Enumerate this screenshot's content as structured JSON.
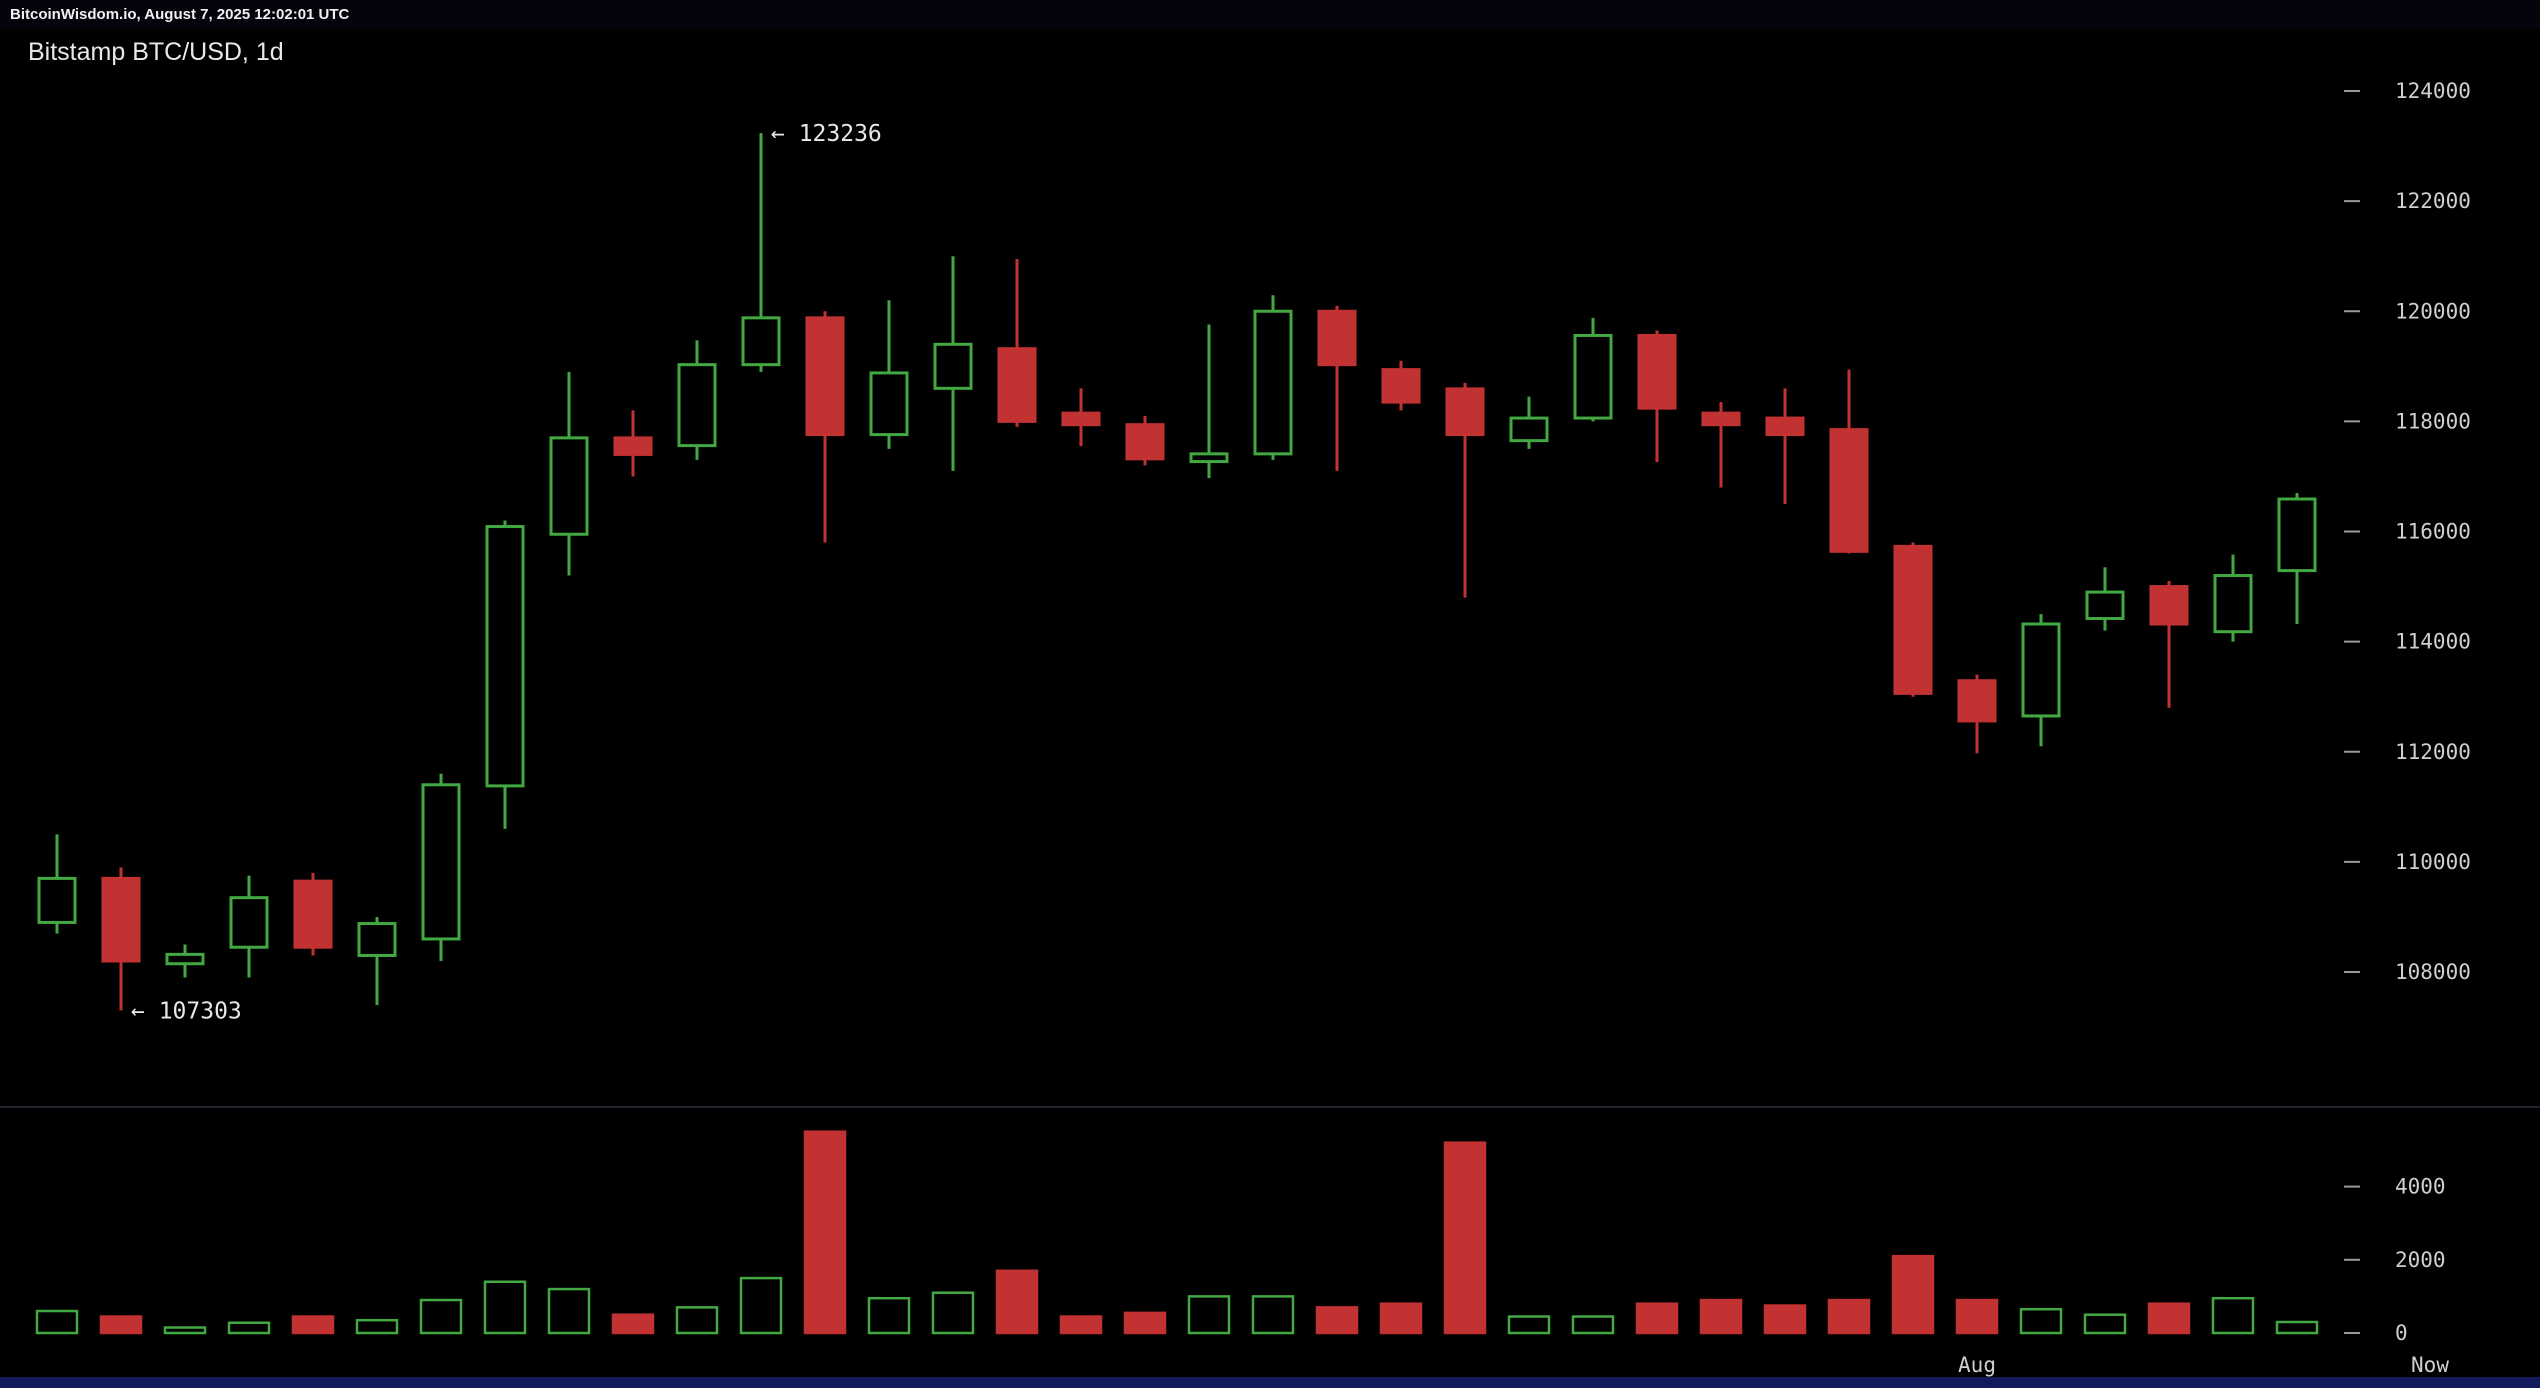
{
  "top_bar": {
    "text": "BitcoinWisdom.io, August 7, 2025 12:02:01 UTC"
  },
  "chart_data": {
    "type": "candlestick",
    "title": "Bitstamp BTC/USD, 1d",
    "exchange": "Bitstamp",
    "pair": "BTC/USD",
    "interval": "1d",
    "price_axis_ticks": [
      124000,
      122000,
      120000,
      118000,
      116000,
      114000,
      112000,
      110000,
      108000
    ],
    "price_axis_range": [
      107000,
      124800
    ],
    "volume_axis_ticks": [
      4000,
      2000,
      0
    ],
    "x_axis_labels": [
      {
        "label": "Aug",
        "candle_index": 30
      },
      {
        "label": "Now",
        "align": "right"
      }
    ],
    "annotations": [
      {
        "text": "← 123236",
        "value": 123236,
        "anchor": "high",
        "candle_index": 11
      },
      {
        "text": "← 107303",
        "value": 107303,
        "anchor": "low",
        "candle_index": 1
      }
    ],
    "colors": {
      "up": "#42a842",
      "down": "#c33232",
      "background": "#000000",
      "text": "#cfcfcf",
      "tick": "#9a9a9a",
      "annotation": "#e8e8e8",
      "separator": "#23232f"
    },
    "candles_format": [
      "open",
      "high",
      "low",
      "close",
      "volume"
    ],
    "candles": [
      [
        108900,
        110500,
        108700,
        109700,
        600
      ],
      [
        109700,
        109900,
        107303,
        108200,
        450
      ],
      [
        108150,
        108500,
        107900,
        108320,
        150
      ],
      [
        108450,
        109750,
        107900,
        109350,
        280
      ],
      [
        109650,
        109800,
        108300,
        108450,
        450
      ],
      [
        108300,
        109000,
        107400,
        108880,
        350
      ],
      [
        108600,
        111600,
        108200,
        111400,
        900
      ],
      [
        111380,
        116200,
        110600,
        116090,
        1400
      ],
      [
        115950,
        118900,
        115200,
        117700,
        1200
      ],
      [
        117700,
        118200,
        117000,
        117400,
        500
      ],
      [
        117560,
        119470,
        117300,
        119030,
        700
      ],
      [
        119030,
        123236,
        118900,
        119880,
        1500
      ],
      [
        119880,
        120000,
        115800,
        117760,
        5500
      ],
      [
        117760,
        120200,
        117500,
        118880,
        950
      ],
      [
        118600,
        121000,
        117100,
        119400,
        1100
      ],
      [
        119320,
        120950,
        117900,
        118000,
        1700
      ],
      [
        118150,
        118600,
        117550,
        117940,
        450
      ],
      [
        117940,
        118100,
        117200,
        117320,
        550
      ],
      [
        117270,
        119760,
        116970,
        117410,
        1000
      ],
      [
        117410,
        120290,
        117300,
        120000,
        1000
      ],
      [
        120000,
        120100,
        117100,
        119030,
        700
      ],
      [
        118940,
        119100,
        118200,
        118350,
        800
      ],
      [
        118590,
        118700,
        114800,
        117760,
        5200
      ],
      [
        117650,
        118450,
        117500,
        118060,
        450
      ],
      [
        118060,
        119880,
        118000,
        119560,
        450
      ],
      [
        119560,
        119650,
        117260,
        118240,
        800
      ],
      [
        118150,
        118350,
        116800,
        117940,
        900
      ],
      [
        118060,
        118600,
        116500,
        117760,
        750
      ],
      [
        117850,
        118940,
        115600,
        115640,
        900
      ],
      [
        115730,
        115800,
        113000,
        113060,
        2100
      ],
      [
        113290,
        113400,
        111970,
        112560,
        900
      ],
      [
        112650,
        114500,
        112100,
        114320,
        650
      ],
      [
        114420,
        115350,
        114200,
        114900,
        500
      ],
      [
        115000,
        115100,
        112800,
        114320,
        800
      ],
      [
        114180,
        115580,
        114000,
        115200,
        950
      ],
      [
        115290,
        116700,
        114320,
        116590,
        300
      ]
    ]
  }
}
